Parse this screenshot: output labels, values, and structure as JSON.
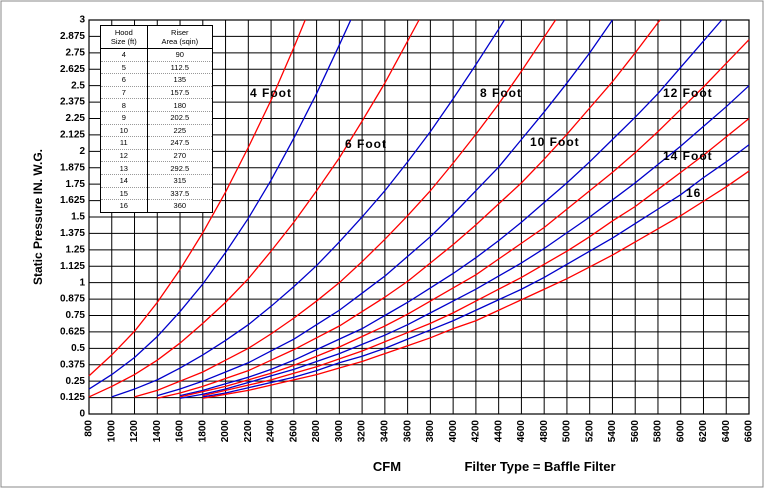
{
  "chart_data": {
    "type": "line",
    "ylabel": "Static Pressure IN. W.G.",
    "xlabel": "CFM",
    "subtitle": "Filter Type = Baffle Filter",
    "xlim": [
      800,
      6600
    ],
    "xticks": [
      800,
      1000,
      1200,
      1400,
      1600,
      1800,
      2000,
      2200,
      2400,
      2600,
      2800,
      3000,
      3200,
      3400,
      3600,
      3800,
      4000,
      4200,
      4400,
      4600,
      4800,
      5000,
      5200,
      5400,
      5600,
      5800,
      6000,
      6200,
      6400,
      6600
    ],
    "ylim": [
      0,
      3
    ],
    "yticks": [
      0,
      0.125,
      0.25,
      0.375,
      0.5,
      0.625,
      0.75,
      0.875,
      1,
      1.125,
      1.25,
      1.375,
      1.5,
      1.625,
      1.75,
      1.875,
      2,
      2.125,
      2.25,
      2.375,
      2.5,
      2.625,
      2.75,
      2.875,
      3
    ],
    "grid": true,
    "annotations": [
      "4 Foot",
      "6 Foot",
      "8 Foot",
      "10 Foot",
      "12 Foot",
      "14 Foot",
      "16"
    ],
    "series": [
      {
        "color": "#ff0000",
        "x": [
          800,
          1000,
          1200,
          1400,
          1600,
          1800,
          2000,
          2200,
          2400,
          2600,
          2700
        ],
        "values": [
          0.29,
          0.45,
          0.63,
          0.85,
          1.1,
          1.38,
          1.69,
          2.03,
          2.39,
          2.79,
          3
        ]
      },
      {
        "color": "#0000cc",
        "x": [
          800,
          1000,
          1200,
          1400,
          1600,
          1800,
          2000,
          2200,
          2400,
          2600,
          2800,
          3000,
          3100
        ],
        "values": [
          0.19,
          0.3,
          0.43,
          0.59,
          0.78,
          0.99,
          1.23,
          1.49,
          1.78,
          2.1,
          2.44,
          2.81,
          3
        ]
      },
      {
        "color": "#ff0000",
        "x": [
          800,
          1000,
          1200,
          1400,
          1600,
          1800,
          2000,
          2200,
          2400,
          2600,
          2800,
          3000,
          3200,
          3400,
          3600,
          3700
        ],
        "values": [
          0.13,
          0.21,
          0.3,
          0.41,
          0.54,
          0.69,
          0.85,
          1.03,
          1.24,
          1.46,
          1.7,
          1.95,
          2.23,
          2.52,
          2.84,
          3
        ]
      },
      {
        "color": "#0000cc",
        "x": [
          1000,
          1200,
          1400,
          1600,
          1800,
          2000,
          2200,
          2400,
          2600,
          2800,
          3000,
          3200,
          3400,
          3600,
          3800,
          4000,
          4200,
          4400,
          4450
        ],
        "values": [
          0.13,
          0.19,
          0.26,
          0.35,
          0.45,
          0.56,
          0.68,
          0.82,
          0.97,
          1.13,
          1.31,
          1.5,
          1.7,
          1.92,
          2.15,
          2.4,
          2.66,
          2.93,
          3
        ]
      },
      {
        "color": "#ff0000",
        "x": [
          1200,
          1400,
          1600,
          1800,
          2000,
          2200,
          2400,
          2600,
          2800,
          3000,
          3200,
          3400,
          3600,
          3800,
          4000,
          4200,
          4400,
          4600,
          4800,
          4900
        ],
        "values": [
          0.13,
          0.18,
          0.25,
          0.32,
          0.41,
          0.5,
          0.61,
          0.73,
          0.86,
          1,
          1.16,
          1.33,
          1.51,
          1.7,
          1.91,
          2.13,
          2.36,
          2.61,
          2.87,
          3
        ]
      },
      {
        "color": "#0000cc",
        "x": [
          1400,
          1600,
          1800,
          2000,
          2200,
          2400,
          2600,
          2800,
          3000,
          3200,
          3400,
          3600,
          3800,
          4000,
          4200,
          4400,
          4600,
          4800,
          5000,
          5200,
          5400
        ],
        "values": [
          0.14,
          0.19,
          0.25,
          0.32,
          0.39,
          0.48,
          0.57,
          0.68,
          0.79,
          0.92,
          1.05,
          1.2,
          1.35,
          1.52,
          1.7,
          1.88,
          2.09,
          2.3,
          2.52,
          2.75,
          3
        ]
      },
      {
        "color": "#ff0000",
        "x": [
          1400,
          1600,
          1800,
          2000,
          2200,
          2400,
          2600,
          2800,
          3000,
          3200,
          3400,
          3600,
          3800,
          4000,
          4200,
          4400,
          4600,
          4800,
          5000,
          5200,
          5400,
          5600,
          5800,
          5820
        ],
        "values": [
          0.12,
          0.16,
          0.21,
          0.27,
          0.33,
          0.41,
          0.49,
          0.58,
          0.67,
          0.78,
          0.89,
          1.01,
          1.15,
          1.29,
          1.44,
          1.6,
          1.76,
          1.94,
          2.13,
          2.33,
          2.53,
          2.75,
          2.98,
          3
        ]
      },
      {
        "color": "#0000cc",
        "x": [
          1600,
          1800,
          2000,
          2200,
          2400,
          2600,
          2800,
          3000,
          3200,
          3400,
          3600,
          3800,
          4000,
          4200,
          4400,
          4600,
          4800,
          5000,
          5200,
          5400,
          5600,
          5800,
          6000,
          6200,
          6360
        ],
        "values": [
          0.14,
          0.18,
          0.23,
          0.28,
          0.34,
          0.41,
          0.49,
          0.57,
          0.65,
          0.75,
          0.85,
          0.96,
          1.07,
          1.19,
          1.32,
          1.46,
          1.61,
          1.76,
          1.92,
          2.09,
          2.26,
          2.44,
          2.64,
          2.84,
          3
        ]
      },
      {
        "color": "#ff0000",
        "x": [
          1600,
          1800,
          2000,
          2200,
          2400,
          2600,
          2800,
          3000,
          3200,
          3400,
          3600,
          3800,
          4000,
          4200,
          4400,
          4600,
          4800,
          5000,
          5200,
          5400,
          5600,
          5800,
          6000,
          6200,
          6400,
          6600
        ],
        "values": [
          0.13,
          0.17,
          0.21,
          0.26,
          0.31,
          0.37,
          0.44,
          0.51,
          0.59,
          0.67,
          0.76,
          0.86,
          0.96,
          1.06,
          1.18,
          1.3,
          1.42,
          1.56,
          1.7,
          1.84,
          1.99,
          2.15,
          2.32,
          2.49,
          2.67,
          2.85
        ]
      },
      {
        "color": "#0000cc",
        "x": [
          1600,
          1800,
          2000,
          2200,
          2400,
          2600,
          2800,
          3000,
          3200,
          3400,
          3600,
          3800,
          4000,
          4200,
          4400,
          4600,
          4800,
          5000,
          5200,
          5400,
          5600,
          5800,
          6000,
          6200,
          6400,
          6600
        ],
        "values": [
          0.12,
          0.15,
          0.19,
          0.24,
          0.29,
          0.34,
          0.4,
          0.46,
          0.53,
          0.6,
          0.68,
          0.77,
          0.86,
          0.95,
          1.05,
          1.15,
          1.26,
          1.38,
          1.5,
          1.63,
          1.76,
          1.9,
          2.04,
          2.19,
          2.34,
          2.5
        ]
      },
      {
        "color": "#ff0000",
        "x": [
          1800,
          2000,
          2200,
          2400,
          2600,
          2800,
          3000,
          3200,
          3400,
          3600,
          3800,
          4000,
          4200,
          4400,
          4600,
          4800,
          5000,
          5200,
          5400,
          5600,
          5800,
          6000,
          6200,
          6400,
          6600
        ],
        "values": [
          0.14,
          0.18,
          0.22,
          0.26,
          0.31,
          0.36,
          0.42,
          0.48,
          0.55,
          0.62,
          0.69,
          0.77,
          0.86,
          0.95,
          1.04,
          1.14,
          1.24,
          1.35,
          1.47,
          1.58,
          1.71,
          1.84,
          1.97,
          2.11,
          2.25
        ]
      },
      {
        "color": "#0000cc",
        "x": [
          1800,
          2000,
          2200,
          2400,
          2600,
          2800,
          3000,
          3200,
          3400,
          3600,
          3800,
          4000,
          4200,
          4400,
          4600,
          4800,
          5000,
          5200,
          5400,
          5600,
          5800,
          6000,
          6200,
          6400,
          6600
        ],
        "values": [
          0.13,
          0.16,
          0.2,
          0.24,
          0.28,
          0.33,
          0.39,
          0.44,
          0.5,
          0.57,
          0.64,
          0.71,
          0.79,
          0.87,
          0.95,
          1.04,
          1.14,
          1.24,
          1.34,
          1.45,
          1.56,
          1.67,
          1.8,
          1.92,
          2.05
        ]
      },
      {
        "color": "#ff0000",
        "x": [
          1800,
          2000,
          2200,
          2400,
          2600,
          2800,
          3000,
          3200,
          3400,
          3600,
          3800,
          4000,
          4200,
          4400,
          4600,
          4800,
          5000,
          5200,
          5400,
          5600,
          5800,
          6000,
          6200,
          6400,
          6600
        ],
        "values": [
          0.12,
          0.15,
          0.18,
          0.22,
          0.26,
          0.3,
          0.35,
          0.4,
          0.46,
          0.52,
          0.58,
          0.65,
          0.71,
          0.79,
          0.87,
          0.95,
          1.03,
          1.12,
          1.21,
          1.31,
          1.41,
          1.51,
          1.62,
          1.73,
          1.85
        ]
      }
    ],
    "table": {
      "columns": [
        [
          "Hood",
          "Size (ft)"
        ],
        [
          "Riser",
          "Area (sqin)"
        ]
      ],
      "rows": [
        [
          4,
          90
        ],
        [
          5,
          112.5
        ],
        [
          6,
          135
        ],
        [
          7,
          157.5
        ],
        [
          8,
          180
        ],
        [
          9,
          202.5
        ],
        [
          10,
          225
        ],
        [
          11,
          247.5
        ],
        [
          12,
          270
        ],
        [
          13,
          292.5
        ],
        [
          14,
          315
        ],
        [
          15,
          337.5
        ],
        [
          16,
          360
        ]
      ]
    }
  }
}
